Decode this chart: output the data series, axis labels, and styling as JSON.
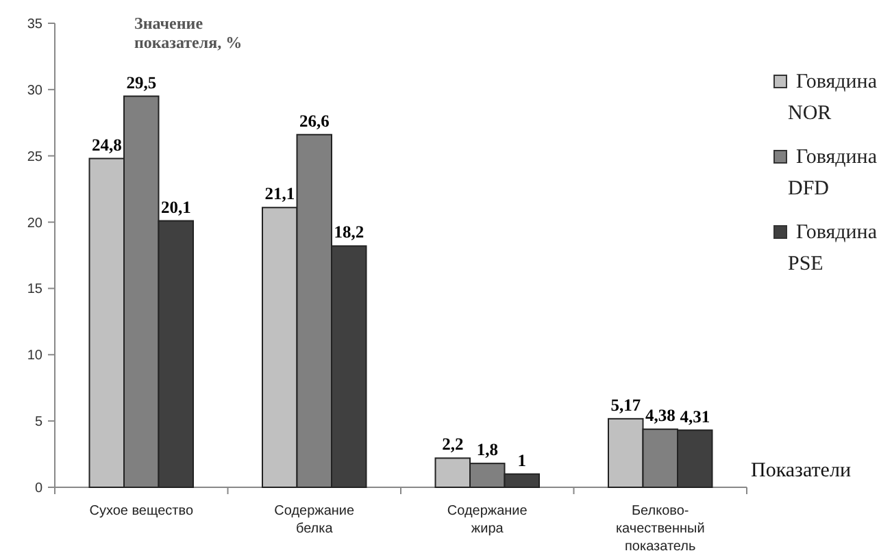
{
  "chart_data": {
    "type": "bar",
    "ylabel": "Значение показателя, %",
    "xlabel": "Показатели",
    "categories": [
      "Сухое вещество",
      "Содержание белка",
      "Содержание жира",
      "Белково-качественный показатель"
    ],
    "series": [
      {
        "name": "Говядина NOR",
        "color": "#c0c0c0",
        "values": [
          24.8,
          21.1,
          2.2,
          5.17
        ],
        "value_labels": [
          "24,8",
          "21,1",
          "2,2",
          "5,17"
        ]
      },
      {
        "name": "Говядина DFD",
        "color": "#808080",
        "values": [
          29.5,
          26.6,
          1.8,
          4.38
        ],
        "value_labels": [
          "29,5",
          "26,6",
          "1,8",
          "4,38"
        ]
      },
      {
        "name": "Говядина PSE",
        "color": "#404040",
        "values": [
          20.1,
          18.2,
          1,
          4.31
        ],
        "value_labels": [
          "20,1",
          "18,2",
          "1",
          "4,31"
        ]
      }
    ],
    "ylim": [
      0,
      35
    ],
    "yticks": [
      0,
      5,
      10,
      15,
      20,
      25,
      30,
      35
    ],
    "legend": "right"
  }
}
